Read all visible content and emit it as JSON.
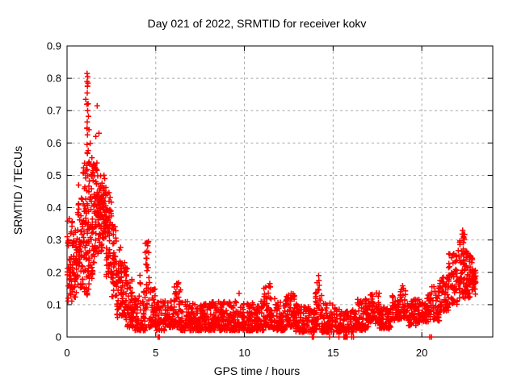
{
  "colors": {
    "background": "#ffffff",
    "axis": "#000000",
    "grid": "#a6a6a6",
    "marker": "#ff0000"
  },
  "chart_data": {
    "type": "scatter",
    "title": "Day 021 of 2022, SRMTID for receiver kokv",
    "xlabel": "GPS time / hours",
    "ylabel": "SRMTID / TECUs",
    "xlim": [
      0,
      24
    ],
    "ylim": [
      0,
      0.9
    ],
    "xticks": [
      0,
      5,
      10,
      15,
      20
    ],
    "yticks": [
      0,
      0.1,
      0.2,
      0.3,
      0.4,
      0.5,
      0.6,
      0.7,
      0.8,
      0.9
    ],
    "grid": true,
    "legend": "none",
    "marker": {
      "shape": "plus",
      "color": "#ff0000",
      "size": 7
    },
    "series_name": "SRMTID",
    "envelope_bins": [
      [
        0.0,
        0.3,
        0.11,
        0.37,
        45,
        1.1
      ],
      [
        0.3,
        0.6,
        0.12,
        0.33,
        50,
        1.0
      ],
      [
        0.6,
        0.9,
        0.15,
        0.45,
        50,
        1.0
      ],
      [
        0.9,
        1.1,
        0.14,
        0.55,
        40,
        1.1
      ],
      [
        1.1,
        1.25,
        0.12,
        0.78,
        45,
        1.3
      ],
      [
        1.25,
        1.5,
        0.18,
        0.6,
        45,
        1.2
      ],
      [
        1.5,
        1.75,
        0.22,
        0.55,
        45,
        1.0
      ],
      [
        1.75,
        2.0,
        0.26,
        0.5,
        50,
        1.0
      ],
      [
        2.0,
        2.2,
        0.3,
        0.47,
        45,
        1.0
      ],
      [
        2.2,
        2.5,
        0.18,
        0.45,
        50,
        1.0
      ],
      [
        2.5,
        2.8,
        0.12,
        0.35,
        45,
        1.1
      ],
      [
        2.8,
        3.1,
        0.06,
        0.28,
        45,
        1.2
      ],
      [
        3.1,
        3.4,
        0.04,
        0.26,
        40,
        1.3
      ],
      [
        3.4,
        3.7,
        0.03,
        0.18,
        40,
        1.3
      ],
      [
        3.7,
        4.1,
        0.02,
        0.13,
        45,
        1.4
      ],
      [
        4.1,
        4.4,
        0.02,
        0.2,
        35,
        1.5
      ],
      [
        4.4,
        4.7,
        0.03,
        0.31,
        35,
        1.5
      ],
      [
        4.7,
        5.0,
        0.03,
        0.16,
        35,
        1.5
      ],
      [
        5.0,
        5.5,
        0.02,
        0.11,
        50,
        1.6
      ],
      [
        5.5,
        6.0,
        0.03,
        0.12,
        55,
        1.6
      ],
      [
        6.0,
        6.4,
        0.03,
        0.17,
        45,
        1.6
      ],
      [
        6.4,
        7.0,
        0.02,
        0.11,
        65,
        1.6
      ],
      [
        7.0,
        8.0,
        0.02,
        0.105,
        110,
        1.6
      ],
      [
        8.0,
        9.0,
        0.02,
        0.11,
        110,
        1.6
      ],
      [
        9.0,
        9.6,
        0.02,
        0.12,
        65,
        1.6
      ],
      [
        9.6,
        10.4,
        0.02,
        0.105,
        85,
        1.6
      ],
      [
        10.4,
        11.1,
        0.02,
        0.11,
        75,
        1.6
      ],
      [
        11.1,
        11.6,
        0.03,
        0.16,
        55,
        1.7
      ],
      [
        11.6,
        12.3,
        0.02,
        0.12,
        75,
        1.6
      ],
      [
        12.3,
        12.9,
        0.03,
        0.135,
        65,
        1.5
      ],
      [
        12.9,
        13.6,
        0.015,
        0.105,
        75,
        1.6
      ],
      [
        13.6,
        14.0,
        0.015,
        0.09,
        40,
        1.5
      ],
      [
        14.0,
        14.35,
        0.02,
        0.19,
        35,
        1.7
      ],
      [
        14.35,
        15.0,
        0.015,
        0.105,
        65,
        1.6
      ],
      [
        15.0,
        15.5,
        0.015,
        0.09,
        45,
        1.5
      ],
      [
        15.5,
        16.3,
        0.015,
        0.085,
        70,
        1.5
      ],
      [
        16.3,
        17.0,
        0.02,
        0.12,
        70,
        1.5
      ],
      [
        17.0,
        17.6,
        0.04,
        0.14,
        60,
        1.3
      ],
      [
        17.6,
        18.3,
        0.025,
        0.095,
        65,
        1.4
      ],
      [
        18.3,
        18.7,
        0.05,
        0.13,
        40,
        1.2
      ],
      [
        18.7,
        19.2,
        0.055,
        0.16,
        50,
        1.2
      ],
      [
        19.2,
        19.8,
        0.035,
        0.12,
        55,
        1.4
      ],
      [
        19.8,
        20.4,
        0.045,
        0.13,
        55,
        1.3
      ],
      [
        20.4,
        21.0,
        0.05,
        0.16,
        55,
        1.3
      ],
      [
        21.0,
        21.5,
        0.08,
        0.19,
        50,
        1.1
      ],
      [
        21.5,
        22.0,
        0.1,
        0.26,
        55,
        1.1
      ],
      [
        22.0,
        22.5,
        0.12,
        0.32,
        60,
        1.1
      ],
      [
        22.5,
        22.85,
        0.12,
        0.27,
        45,
        1.0
      ],
      [
        22.85,
        23.05,
        0.13,
        0.21,
        28,
        1.0
      ]
    ],
    "outlier_points": [
      [
        1.13,
        0.815
      ],
      [
        1.16,
        0.805
      ],
      [
        1.13,
        0.79
      ],
      [
        1.18,
        0.785
      ],
      [
        1.15,
        0.775
      ],
      [
        1.14,
        0.755
      ],
      [
        1.05,
        0.735
      ],
      [
        1.12,
        0.72
      ],
      [
        1.7,
        0.715
      ],
      [
        1.16,
        0.7
      ],
      [
        1.14,
        0.665
      ],
      [
        1.13,
        0.645
      ],
      [
        1.15,
        0.625
      ],
      [
        1.8,
        0.63
      ],
      [
        1.62,
        0.62
      ],
      [
        1.13,
        0.595
      ],
      [
        1.14,
        0.57
      ],
      [
        1.5,
        0.535
      ],
      [
        1.55,
        0.53
      ],
      [
        1.58,
        0.525
      ],
      [
        1.62,
        0.52
      ],
      [
        1.66,
        0.515
      ],
      [
        1.05,
        0.505
      ],
      [
        2.08,
        0.5
      ],
      [
        2.12,
        0.49
      ],
      [
        0.65,
        0.47
      ],
      [
        6.18,
        0.165
      ],
      [
        6.2,
        0.155
      ],
      [
        11.43,
        0.165
      ],
      [
        11.46,
        0.155
      ],
      [
        9.7,
        0.135
      ],
      [
        14.18,
        0.19
      ],
      [
        14.2,
        0.175
      ],
      [
        14.22,
        0.16
      ],
      [
        14.2,
        0.145
      ],
      [
        22.3,
        0.33
      ],
      [
        22.28,
        0.318
      ],
      [
        22.35,
        0.31
      ]
    ],
    "zero_points": [
      5.13,
      5.2,
      13.82,
      13.9,
      14.8,
      15.33,
      15.6,
      15.65,
      15.7,
      15.75,
      15.8,
      16.05,
      16.15,
      20.45,
      20.55
    ]
  }
}
